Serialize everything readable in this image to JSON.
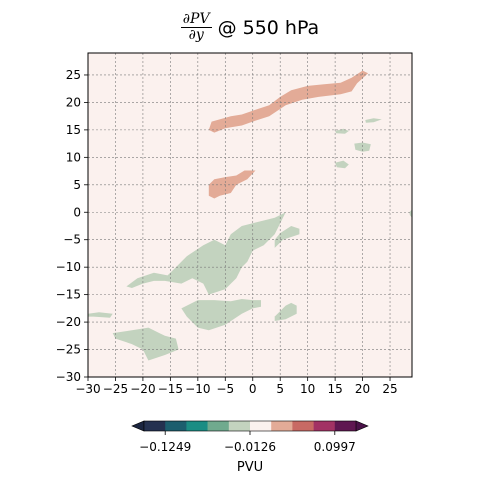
{
  "chart_data": {
    "type": "filled-contour",
    "title": {
      "numerator": "∂PV",
      "denominator": "∂y",
      "suffix": "@ 550 hPa"
    },
    "xlim": [
      -30,
      29
    ],
    "ylim": [
      -30,
      29
    ],
    "x_ticks": [
      -30,
      -25,
      -20,
      -15,
      -10,
      -5,
      0,
      5,
      10,
      15,
      20,
      25
    ],
    "y_ticks": [
      -30,
      -25,
      -20,
      -15,
      -10,
      -5,
      0,
      5,
      10,
      15,
      20,
      25
    ],
    "grid": true,
    "grid_style": "dashed",
    "background_color": "#fbf1ee",
    "colorbar": {
      "orientation": "horizontal",
      "placement": "bottom",
      "extend": "both",
      "tick_labels": [
        "−0.1249",
        "−0.0126",
        "0.0997"
      ],
      "label": "PVU",
      "colors": [
        "#243150",
        "#1c5e6e",
        "#1b8d84",
        "#70aa8e",
        "#c3d3bf",
        "#fbf1ee",
        "#e3ab97",
        "#c86a64",
        "#a23264",
        "#5f1751"
      ],
      "under_color": "#1b2540",
      "over_color": "#4a1248"
    },
    "regions": [
      {
        "name": "positive-band-north",
        "color": "#e3ab97",
        "polygon": [
          [
            -8,
            15
          ],
          [
            -7.5,
            16.5
          ],
          [
            -4,
            17.5
          ],
          [
            -2,
            17.8
          ],
          [
            0,
            18.5
          ],
          [
            3,
            19.5
          ],
          [
            5,
            21
          ],
          [
            7,
            22.2
          ],
          [
            10,
            23
          ],
          [
            13,
            23.3
          ],
          [
            16,
            23.6
          ],
          [
            18,
            24.5
          ],
          [
            20,
            25.8
          ],
          [
            21,
            25.3
          ],
          [
            19,
            23.5
          ],
          [
            18,
            22
          ],
          [
            16,
            21.5
          ],
          [
            12,
            21
          ],
          [
            9,
            20.5
          ],
          [
            6,
            19.5
          ],
          [
            3,
            17.5
          ],
          [
            0,
            16.5
          ],
          [
            -2,
            15.8
          ],
          [
            -5,
            15.3
          ],
          [
            -7,
            14.5
          ]
        ]
      },
      {
        "name": "positive-patch-mid",
        "color": "#e3ab97",
        "polygon": [
          [
            -8,
            3
          ],
          [
            -8,
            5
          ],
          [
            -7,
            6
          ],
          [
            -5,
            6.4
          ],
          [
            -3,
            6.7
          ],
          [
            -1.5,
            7.6
          ],
          [
            0.5,
            7.6
          ],
          [
            -1,
            6
          ],
          [
            -3,
            5
          ],
          [
            -4,
            3.5
          ],
          [
            -6,
            3
          ],
          [
            -7,
            2.5
          ]
        ]
      },
      {
        "name": "negative-large",
        "color": "#c3d3bf",
        "polygon": [
          [
            -23,
            -13.5
          ],
          [
            -21,
            -12
          ],
          [
            -18,
            -11
          ],
          [
            -15.5,
            -11.5
          ],
          [
            -14,
            -10
          ],
          [
            -12,
            -8
          ],
          [
            -9,
            -6
          ],
          [
            -7,
            -5
          ],
          [
            -5,
            -6
          ],
          [
            -4,
            -4
          ],
          [
            -2,
            -2.5
          ],
          [
            0,
            -2
          ],
          [
            2,
            -1.5
          ],
          [
            4,
            -1
          ],
          [
            6,
            0
          ],
          [
            5,
            -2
          ],
          [
            4,
            -4
          ],
          [
            2,
            -6
          ],
          [
            0,
            -7
          ],
          [
            -1,
            -9
          ],
          [
            -2,
            -10
          ],
          [
            -3,
            -12
          ],
          [
            -5,
            -14
          ],
          [
            -8,
            -15
          ],
          [
            -9,
            -13
          ],
          [
            -11,
            -12
          ],
          [
            -13,
            -13
          ],
          [
            -16,
            -12.5
          ],
          [
            -18,
            -12.5
          ],
          [
            -20,
            -13
          ],
          [
            -22,
            -13.8
          ]
        ]
      },
      {
        "name": "negative-right-patch",
        "color": "#c3d3bf",
        "polygon": [
          [
            4,
            -6.5
          ],
          [
            5.5,
            -5
          ],
          [
            7,
            -4.5
          ],
          [
            8.5,
            -4
          ],
          [
            8.5,
            -3
          ],
          [
            7,
            -2.5
          ],
          [
            5,
            -3.8
          ],
          [
            4,
            -5
          ]
        ]
      },
      {
        "name": "negative-lower-band",
        "color": "#c3d3bf",
        "polygon": [
          [
            -13,
            -17.5
          ],
          [
            -10,
            -16
          ],
          [
            -7,
            -16
          ],
          [
            -4,
            -16.2
          ],
          [
            -2,
            -15.8
          ],
          [
            0,
            -16
          ],
          [
            1.5,
            -16
          ],
          [
            1.5,
            -17.2
          ],
          [
            0,
            -17.5
          ],
          [
            -2,
            -18.5
          ],
          [
            -5,
            -20.5
          ],
          [
            -8,
            -21.5
          ],
          [
            -10,
            -21
          ],
          [
            -11,
            -20
          ],
          [
            -12,
            -19
          ]
        ]
      },
      {
        "name": "negative-lower-right",
        "color": "#c3d3bf",
        "polygon": [
          [
            4,
            -19
          ],
          [
            6,
            -17
          ],
          [
            7,
            -16.5
          ],
          [
            8,
            -17
          ],
          [
            8,
            -18.5
          ],
          [
            6,
            -19.5
          ],
          [
            4,
            -19.8
          ]
        ]
      },
      {
        "name": "negative-southwest",
        "color": "#c3d3bf",
        "polygon": [
          [
            -25.5,
            -22
          ],
          [
            -22,
            -21.5
          ],
          [
            -19,
            -21
          ],
          [
            -17,
            -22
          ],
          [
            -16,
            -22.5
          ],
          [
            -14,
            -23
          ],
          [
            -13.5,
            -25
          ],
          [
            -16,
            -26
          ],
          [
            -19,
            -27
          ],
          [
            -20,
            -25
          ],
          [
            -22,
            -24
          ],
          [
            -25,
            -23
          ]
        ]
      },
      {
        "name": "negative-west-sliver",
        "color": "#c3d3bf",
        "polygon": [
          [
            -30,
            -18.5
          ],
          [
            -28,
            -18.2
          ],
          [
            -25.5,
            -18.5
          ],
          [
            -26,
            -19.2
          ],
          [
            -29,
            -19
          ],
          [
            -30,
            -19
          ]
        ]
      },
      {
        "name": "negative-small-a",
        "color": "#c3d3bf",
        "polygon": [
          [
            15,
            14.8
          ],
          [
            16.5,
            15.2
          ],
          [
            17.5,
            14.8
          ],
          [
            16.8,
            14.3
          ],
          [
            15.2,
            14.4
          ]
        ]
      },
      {
        "name": "negative-small-b",
        "color": "#c3d3bf",
        "polygon": [
          [
            20.5,
            16.8
          ],
          [
            22,
            17.1
          ],
          [
            23.5,
            16.9
          ],
          [
            22,
            16.4
          ],
          [
            20.6,
            16.3
          ]
        ]
      },
      {
        "name": "negative-small-c",
        "color": "#c3d3bf",
        "polygon": [
          [
            18.5,
            12.5
          ],
          [
            20,
            12.7
          ],
          [
            21.5,
            12.4
          ],
          [
            21.2,
            11.2
          ],
          [
            20,
            11
          ],
          [
            18.7,
            11.4
          ]
        ]
      },
      {
        "name": "negative-small-d",
        "color": "#c3d3bf",
        "polygon": [
          [
            15,
            9
          ],
          [
            16.5,
            9.4
          ],
          [
            17.5,
            8.7
          ],
          [
            16.8,
            8
          ],
          [
            15.3,
            8.2
          ]
        ]
      },
      {
        "name": "negative-edge-east",
        "color": "#c3d3bf",
        "polygon": [
          [
            28.5,
            0
          ],
          [
            29,
            0.5
          ],
          [
            29,
            -1
          ],
          [
            28.6,
            -0.5
          ]
        ]
      }
    ]
  }
}
